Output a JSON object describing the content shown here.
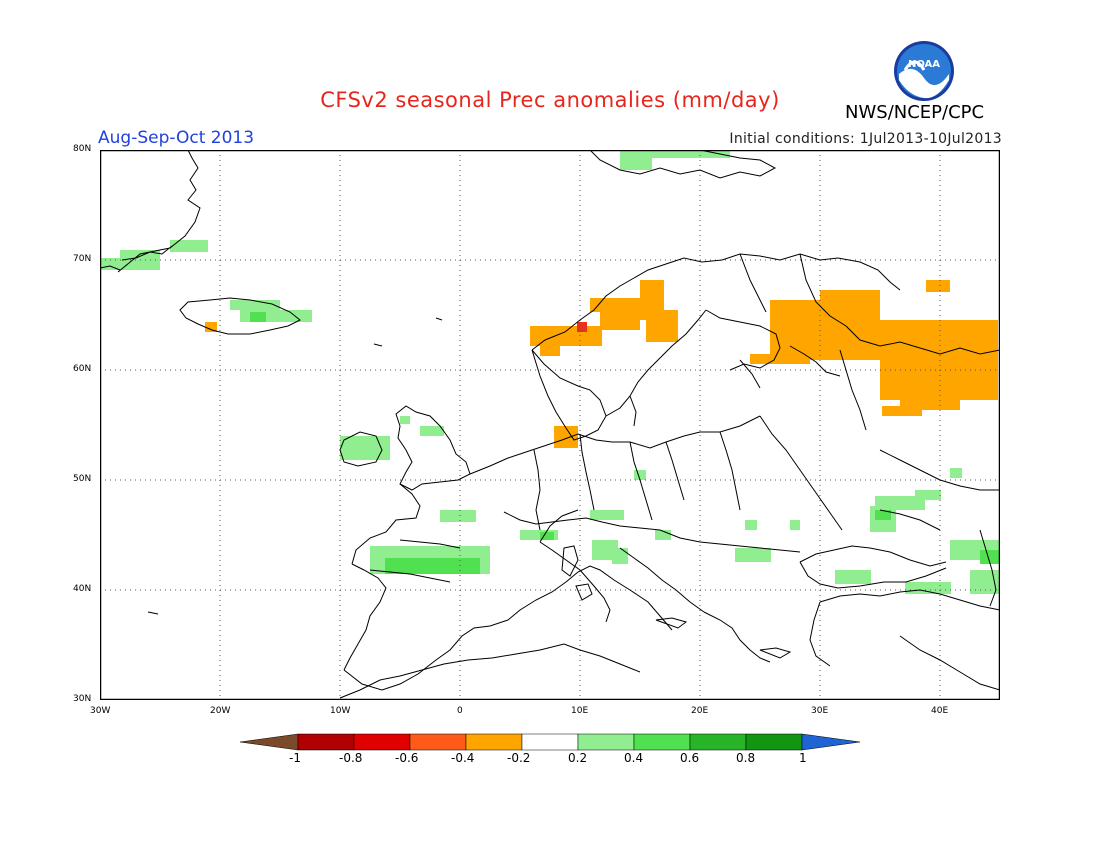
{
  "title": "CFSv2 seasonal Prec anomalies (mm/day)",
  "season": "Aug-Sep-Oct 2013",
  "initial_conditions": "Initial conditions: 1Jul2013-10Jul2013",
  "agency": "NWS/NCEP/CPC",
  "logo_text": "NOAA",
  "axes": {
    "lon_ticks": [
      "30W",
      "20W",
      "10W",
      "0",
      "10E",
      "20E",
      "30E",
      "40E"
    ],
    "lat_ticks": [
      "80N",
      "70N",
      "60N",
      "50N",
      "40N",
      "30N"
    ],
    "lon_range": [
      -30,
      45
    ],
    "lat_range": [
      30,
      80
    ]
  },
  "colorbar": {
    "labels": [
      "-1",
      "-0.8",
      "-0.6",
      "-0.4",
      "-0.2",
      "0.2",
      "0.4",
      "0.6",
      "0.8",
      "1"
    ],
    "colors": [
      "#7b4a2a",
      "#b00000",
      "#e00000",
      "#ff5a1a",
      "#ffa500",
      "#ffffff",
      "#90ee90",
      "#50e050",
      "#28b428",
      "#129612",
      "#1e64d2"
    ]
  },
  "colors": {
    "coast": "#000000",
    "grid": "#555555",
    "pos_light": "#90ee90",
    "pos_mid": "#50e050",
    "neg_orange": "#ffa500",
    "neg_red": "#e8321c"
  }
}
